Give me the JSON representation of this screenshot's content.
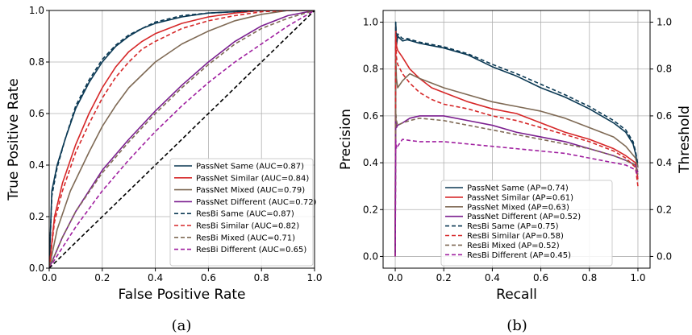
{
  "chart_data": [
    {
      "type": "line",
      "caption": "(a)",
      "xlabel": "False Positive Rate",
      "ylabel": "True Positive Rate",
      "xlim": [
        0.0,
        1.0
      ],
      "ylim": [
        0.0,
        1.0
      ],
      "xticks": [
        "0.0",
        "0.2",
        "0.4",
        "0.6",
        "0.8",
        "1.0"
      ],
      "yticks": [
        "0.0",
        "0.2",
        "0.4",
        "0.6",
        "0.8",
        "1.0"
      ],
      "grid": true,
      "legend_position": "bottom-right",
      "series": [
        {
          "name": "PassNet Same (AUC=0.87)",
          "color": "#0b3954",
          "style": "solid",
          "x": [
            0,
            0.01,
            0.03,
            0.06,
            0.1,
            0.15,
            0.2,
            0.25,
            0.3,
            0.35,
            0.4,
            0.5,
            0.6,
            0.7,
            0.8,
            0.9,
            1.0
          ],
          "y": [
            0,
            0.3,
            0.4,
            0.5,
            0.62,
            0.72,
            0.8,
            0.86,
            0.9,
            0.93,
            0.95,
            0.975,
            0.99,
            0.995,
            1.0,
            1.0,
            1.0
          ]
        },
        {
          "name": "PassNet Similar (AUC=0.84)",
          "color": "#d62728",
          "style": "solid",
          "x": [
            0,
            0.02,
            0.05,
            0.1,
            0.15,
            0.2,
            0.25,
            0.3,
            0.35,
            0.4,
            0.5,
            0.6,
            0.7,
            0.8,
            0.9,
            1.0
          ],
          "y": [
            0,
            0.2,
            0.33,
            0.48,
            0.6,
            0.7,
            0.78,
            0.84,
            0.88,
            0.91,
            0.95,
            0.975,
            0.99,
            1.0,
            1.0,
            1.0
          ]
        },
        {
          "name": "PassNet Mixed (AUC=0.79)",
          "color": "#7f6a55",
          "style": "solid",
          "x": [
            0,
            0.03,
            0.08,
            0.15,
            0.2,
            0.25,
            0.3,
            0.35,
            0.4,
            0.5,
            0.6,
            0.7,
            0.8,
            0.9,
            1.0
          ],
          "y": [
            0,
            0.15,
            0.3,
            0.45,
            0.55,
            0.63,
            0.7,
            0.75,
            0.8,
            0.87,
            0.92,
            0.96,
            0.985,
            1.0,
            1.0
          ]
        },
        {
          "name": "PassNet Different (AUC=0.72)",
          "color": "#7b1f8f",
          "style": "solid",
          "x": [
            0,
            0.05,
            0.1,
            0.2,
            0.3,
            0.4,
            0.5,
            0.6,
            0.7,
            0.8,
            0.9,
            1.0
          ],
          "y": [
            0,
            0.12,
            0.22,
            0.38,
            0.5,
            0.61,
            0.71,
            0.8,
            0.88,
            0.94,
            0.98,
            1.0
          ]
        },
        {
          "name": "ResBi Same (AUC=0.87)",
          "color": "#0b3954",
          "style": "dashed",
          "x": [
            0,
            0.01,
            0.03,
            0.06,
            0.1,
            0.15,
            0.2,
            0.25,
            0.3,
            0.35,
            0.4,
            0.5,
            0.6,
            0.7,
            0.8,
            0.9,
            1.0
          ],
          "y": [
            0,
            0.28,
            0.39,
            0.5,
            0.63,
            0.73,
            0.81,
            0.865,
            0.905,
            0.93,
            0.955,
            0.98,
            0.99,
            0.995,
            1.0,
            1.0,
            1.0
          ]
        },
        {
          "name": "ResBi Similar (AUC=0.82)",
          "color": "#d62728",
          "style": "dashed",
          "x": [
            0,
            0.02,
            0.05,
            0.1,
            0.15,
            0.2,
            0.25,
            0.3,
            0.35,
            0.4,
            0.5,
            0.6,
            0.7,
            0.8,
            0.9,
            1.0
          ],
          "y": [
            0,
            0.18,
            0.3,
            0.45,
            0.56,
            0.66,
            0.74,
            0.8,
            0.85,
            0.88,
            0.93,
            0.96,
            0.98,
            0.995,
            1.0,
            1.0
          ]
        },
        {
          "name": "ResBi Mixed (AUC=0.71)",
          "color": "#7f6a55",
          "style": "dashed",
          "x": [
            0,
            0.05,
            0.1,
            0.2,
            0.3,
            0.4,
            0.5,
            0.6,
            0.7,
            0.8,
            0.9,
            1.0
          ],
          "y": [
            0,
            0.12,
            0.22,
            0.37,
            0.49,
            0.6,
            0.7,
            0.79,
            0.87,
            0.93,
            0.97,
            1.0
          ]
        },
        {
          "name": "ResBi Different (AUC=0.65)",
          "color": "#a020a0",
          "style": "dashed",
          "x": [
            0,
            0.05,
            0.1,
            0.2,
            0.3,
            0.4,
            0.5,
            0.6,
            0.7,
            0.8,
            0.9,
            1.0
          ],
          "y": [
            0,
            0.08,
            0.16,
            0.3,
            0.42,
            0.53,
            0.63,
            0.72,
            0.8,
            0.87,
            0.94,
            1.0
          ]
        },
        {
          "name": "",
          "color": "#000000",
          "style": "dashed",
          "x": [
            0,
            1
          ],
          "y": [
            0,
            1
          ]
        }
      ]
    },
    {
      "type": "line",
      "caption": "(b)",
      "xlabel": "Recall",
      "ylabel": "Precision",
      "y2label": "Threshold",
      "xlim": [
        -0.05,
        1.05
      ],
      "ylim": [
        -0.05,
        1.05
      ],
      "xticks": [
        "0.0",
        "0.2",
        "0.4",
        "0.6",
        "0.8",
        "1.0"
      ],
      "yticks": [
        "0.0",
        "0.2",
        "0.4",
        "0.6",
        "0.8",
        "1.0"
      ],
      "y2ticks": [
        "0.0",
        "0.2",
        "0.4",
        "0.6",
        "0.8",
        "1.0"
      ],
      "grid": true,
      "legend_position": "bottom-center",
      "series": [
        {
          "name": "PassNet Same (AP=0.74)",
          "color": "#0b3954",
          "style": "solid",
          "x": [
            0.0,
            0.002,
            0.005,
            0.01,
            0.03,
            0.05,
            0.1,
            0.2,
            0.3,
            0.4,
            0.5,
            0.6,
            0.7,
            0.8,
            0.9,
            0.95,
            0.98,
            0.99,
            1.0
          ],
          "y": [
            0.0,
            1.0,
            0.9,
            0.94,
            0.92,
            0.925,
            0.91,
            0.89,
            0.86,
            0.81,
            0.77,
            0.72,
            0.68,
            0.63,
            0.57,
            0.53,
            0.48,
            0.44,
            0.38
          ]
        },
        {
          "name": "PassNet Similar (AP=0.61)",
          "color": "#d62728",
          "style": "solid",
          "x": [
            0.0,
            0.002,
            0.005,
            0.01,
            0.03,
            0.06,
            0.1,
            0.15,
            0.2,
            0.3,
            0.4,
            0.5,
            0.6,
            0.7,
            0.8,
            0.9,
            0.95,
            0.99,
            1.0
          ],
          "y": [
            0.0,
            0.98,
            0.9,
            0.88,
            0.85,
            0.8,
            0.76,
            0.72,
            0.7,
            0.66,
            0.63,
            0.61,
            0.57,
            0.53,
            0.5,
            0.46,
            0.43,
            0.4,
            0.33
          ]
        },
        {
          "name": "PassNet Mixed (AP=0.63)",
          "color": "#7f6a55",
          "style": "solid",
          "x": [
            0.0,
            0.002,
            0.005,
            0.01,
            0.03,
            0.06,
            0.1,
            0.2,
            0.3,
            0.4,
            0.5,
            0.6,
            0.7,
            0.8,
            0.9,
            0.95,
            0.99,
            1.0
          ],
          "y": [
            0.0,
            0.85,
            0.76,
            0.72,
            0.75,
            0.78,
            0.76,
            0.72,
            0.69,
            0.66,
            0.64,
            0.62,
            0.59,
            0.55,
            0.51,
            0.47,
            0.42,
            0.38
          ]
        },
        {
          "name": "PassNet Different (AP=0.52)",
          "color": "#7b1f8f",
          "style": "solid",
          "x": [
            0.0,
            0.002,
            0.005,
            0.01,
            0.03,
            0.06,
            0.1,
            0.2,
            0.3,
            0.4,
            0.5,
            0.6,
            0.7,
            0.8,
            0.9,
            0.95,
            0.99,
            1.0
          ],
          "y": [
            0.0,
            0.6,
            0.55,
            0.56,
            0.57,
            0.59,
            0.6,
            0.6,
            0.58,
            0.56,
            0.53,
            0.51,
            0.49,
            0.46,
            0.43,
            0.41,
            0.39,
            0.36
          ]
        },
        {
          "name": "ResBi Same (AP=0.75)",
          "color": "#0b3954",
          "style": "dashed",
          "x": [
            0.0,
            0.002,
            0.005,
            0.01,
            0.03,
            0.05,
            0.1,
            0.2,
            0.3,
            0.4,
            0.5,
            0.6,
            0.7,
            0.8,
            0.9,
            0.95,
            0.98,
            0.99,
            1.0
          ],
          "y": [
            0.0,
            1.0,
            0.92,
            0.95,
            0.93,
            0.93,
            0.915,
            0.895,
            0.865,
            0.82,
            0.78,
            0.735,
            0.69,
            0.64,
            0.58,
            0.54,
            0.49,
            0.45,
            0.39
          ]
        },
        {
          "name": "ResBi Similar (AP=0.58)",
          "color": "#d62728",
          "style": "dashed",
          "x": [
            0.0,
            0.002,
            0.005,
            0.01,
            0.03,
            0.06,
            0.1,
            0.15,
            0.2,
            0.3,
            0.4,
            0.5,
            0.6,
            0.7,
            0.8,
            0.9,
            0.95,
            0.99,
            1.0
          ],
          "y": [
            0.0,
            0.95,
            0.85,
            0.82,
            0.78,
            0.74,
            0.7,
            0.67,
            0.65,
            0.63,
            0.6,
            0.58,
            0.55,
            0.52,
            0.49,
            0.45,
            0.42,
            0.38,
            0.3
          ]
        },
        {
          "name": "ResBi Mixed (AP=0.52)",
          "color": "#7f6a55",
          "style": "dashed",
          "x": [
            0.0,
            0.002,
            0.005,
            0.01,
            0.03,
            0.06,
            0.1,
            0.2,
            0.3,
            0.4,
            0.5,
            0.6,
            0.7,
            0.8,
            0.9,
            0.95,
            0.99,
            1.0
          ],
          "y": [
            0.0,
            0.62,
            0.58,
            0.56,
            0.57,
            0.58,
            0.59,
            0.58,
            0.56,
            0.54,
            0.52,
            0.5,
            0.48,
            0.46,
            0.43,
            0.41,
            0.39,
            0.35
          ]
        },
        {
          "name": "ResBi Different (AP=0.45)",
          "color": "#a020a0",
          "style": "dashed",
          "x": [
            0.0,
            0.002,
            0.005,
            0.01,
            0.03,
            0.06,
            0.1,
            0.2,
            0.3,
            0.4,
            0.5,
            0.6,
            0.7,
            0.8,
            0.9,
            0.95,
            0.99,
            1.0
          ],
          "y": [
            0.0,
            0.5,
            0.46,
            0.47,
            0.5,
            0.495,
            0.49,
            0.49,
            0.48,
            0.47,
            0.46,
            0.45,
            0.44,
            0.42,
            0.4,
            0.39,
            0.37,
            0.34
          ]
        }
      ]
    }
  ]
}
